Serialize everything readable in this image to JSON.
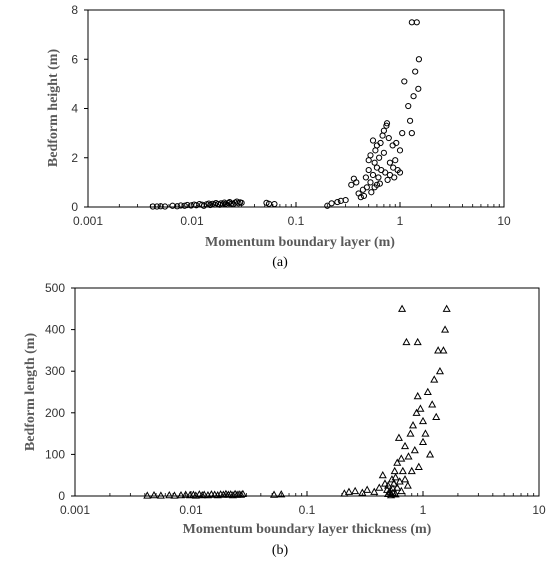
{
  "chart_data": [
    {
      "type": "scatter",
      "panel_label": "(a)",
      "xlabel": "Momentum boundary layer (m)",
      "ylabel": "Bedform height (m)",
      "xscale": "log",
      "xlim": [
        0.001,
        10
      ],
      "ylim": [
        0,
        8
      ],
      "xticks": [
        "0.001",
        "0.01",
        "0.1",
        "1",
        "10"
      ],
      "yticks": [
        "0",
        "2",
        "4",
        "6",
        "8"
      ],
      "marker": "circle",
      "grid": false,
      "legend": "none",
      "points": [
        [
          0.0042,
          0.02
        ],
        [
          0.0046,
          0.02
        ],
        [
          0.005,
          0.03
        ],
        [
          0.0055,
          0.02
        ],
        [
          0.0065,
          0.05
        ],
        [
          0.0072,
          0.03
        ],
        [
          0.0078,
          0.06
        ],
        [
          0.0085,
          0.05
        ],
        [
          0.009,
          0.08
        ],
        [
          0.0098,
          0.06
        ],
        [
          0.0105,
          0.1
        ],
        [
          0.011,
          0.07
        ],
        [
          0.0118,
          0.12
        ],
        [
          0.0125,
          0.09
        ],
        [
          0.013,
          0.05
        ],
        [
          0.0138,
          0.11
        ],
        [
          0.0145,
          0.14
        ],
        [
          0.015,
          0.08
        ],
        [
          0.0158,
          0.13
        ],
        [
          0.0165,
          0.1
        ],
        [
          0.017,
          0.16
        ],
        [
          0.0178,
          0.12
        ],
        [
          0.0185,
          0.09
        ],
        [
          0.019,
          0.15
        ],
        [
          0.0198,
          0.11
        ],
        [
          0.0205,
          0.18
        ],
        [
          0.021,
          0.13
        ],
        [
          0.0218,
          0.1
        ],
        [
          0.0225,
          0.16
        ],
        [
          0.023,
          0.2
        ],
        [
          0.024,
          0.14
        ],
        [
          0.025,
          0.12
        ],
        [
          0.026,
          0.18
        ],
        [
          0.027,
          0.22
        ],
        [
          0.028,
          0.15
        ],
        [
          0.029,
          0.19
        ],
        [
          0.03,
          0.17
        ],
        [
          0.052,
          0.17
        ],
        [
          0.055,
          0.13
        ],
        [
          0.062,
          0.12
        ],
        [
          0.2,
          0.05
        ],
        [
          0.22,
          0.15
        ],
        [
          0.25,
          0.2
        ],
        [
          0.27,
          0.25
        ],
        [
          0.3,
          0.28
        ],
        [
          0.34,
          0.9
        ],
        [
          0.36,
          1.15
        ],
        [
          0.38,
          1.0
        ],
        [
          0.4,
          0.55
        ],
        [
          0.42,
          0.4
        ],
        [
          0.44,
          0.7
        ],
        [
          0.45,
          0.45
        ],
        [
          0.47,
          1.2
        ],
        [
          0.48,
          0.8
        ],
        [
          0.5,
          1.9
        ],
        [
          0.5,
          1.5
        ],
        [
          0.52,
          2.1
        ],
        [
          0.52,
          1.0
        ],
        [
          0.53,
          0.6
        ],
        [
          0.55,
          2.7
        ],
        [
          0.55,
          1.3
        ],
        [
          0.57,
          1.8
        ],
        [
          0.57,
          0.8
        ],
        [
          0.58,
          2.3
        ],
        [
          0.6,
          2.5
        ],
        [
          0.6,
          1.6
        ],
        [
          0.6,
          0.9
        ],
        [
          0.62,
          1.2
        ],
        [
          0.63,
          2.0
        ],
        [
          0.64,
          0.95
        ],
        [
          0.65,
          2.6
        ],
        [
          0.66,
          1.5
        ],
        [
          0.68,
          2.9
        ],
        [
          0.7,
          3.1
        ],
        [
          0.7,
          2.2
        ],
        [
          0.72,
          1.4
        ],
        [
          0.74,
          3.3
        ],
        [
          0.75,
          3.4
        ],
        [
          0.76,
          1.1
        ],
        [
          0.78,
          2.8
        ],
        [
          0.8,
          1.8
        ],
        [
          0.8,
          1.3
        ],
        [
          0.85,
          2.5
        ],
        [
          0.86,
          1.6
        ],
        [
          0.88,
          1.2
        ],
        [
          0.9,
          1.9
        ],
        [
          0.92,
          2.6
        ],
        [
          0.95,
          1.5
        ],
        [
          1.0,
          2.3
        ],
        [
          1.0,
          1.4
        ],
        [
          1.05,
          3.0
        ],
        [
          1.1,
          5.1
        ],
        [
          1.2,
          4.1
        ],
        [
          1.25,
          3.5
        ],
        [
          1.3,
          3.0
        ],
        [
          1.3,
          7.5
        ],
        [
          1.35,
          4.5
        ],
        [
          1.4,
          5.5
        ],
        [
          1.45,
          7.5
        ],
        [
          1.5,
          4.8
        ],
        [
          1.52,
          6.0
        ]
      ]
    },
    {
      "type": "scatter",
      "panel_label": "(b)",
      "xlabel": "Momentum boundary layer thickness (m)",
      "ylabel": "Bedform length (m)",
      "xscale": "log",
      "xlim": [
        0.001,
        10
      ],
      "ylim": [
        0,
        500
      ],
      "xticks": [
        "0.001",
        "0.01",
        "0.1",
        "1",
        "10"
      ],
      "yticks": [
        "0",
        "100",
        "200",
        "300",
        "400",
        "500"
      ],
      "marker": "triangle",
      "grid": false,
      "legend": "none",
      "points": [
        [
          0.0042,
          1
        ],
        [
          0.0048,
          2
        ],
        [
          0.0055,
          1
        ],
        [
          0.0065,
          2
        ],
        [
          0.0072,
          1
        ],
        [
          0.0082,
          2
        ],
        [
          0.009,
          3
        ],
        [
          0.0098,
          2
        ],
        [
          0.0105,
          3
        ],
        [
          0.011,
          1
        ],
        [
          0.0118,
          4
        ],
        [
          0.0125,
          2
        ],
        [
          0.013,
          3
        ],
        [
          0.014,
          2
        ],
        [
          0.015,
          4
        ],
        [
          0.016,
          3
        ],
        [
          0.017,
          2
        ],
        [
          0.018,
          4
        ],
        [
          0.019,
          3
        ],
        [
          0.02,
          5
        ],
        [
          0.021,
          3
        ],
        [
          0.022,
          4
        ],
        [
          0.023,
          2
        ],
        [
          0.024,
          5
        ],
        [
          0.025,
          3
        ],
        [
          0.026,
          4
        ],
        [
          0.027,
          3
        ],
        [
          0.028,
          5
        ],
        [
          0.052,
          3
        ],
        [
          0.06,
          4
        ],
        [
          0.21,
          6
        ],
        [
          0.23,
          10
        ],
        [
          0.26,
          12
        ],
        [
          0.3,
          8
        ],
        [
          0.33,
          15
        ],
        [
          0.38,
          10
        ],
        [
          0.42,
          20
        ],
        [
          0.45,
          50
        ],
        [
          0.47,
          30
        ],
        [
          0.49,
          15
        ],
        [
          0.5,
          5
        ],
        [
          0.5,
          25
        ],
        [
          0.52,
          10
        ],
        [
          0.53,
          2
        ],
        [
          0.54,
          40
        ],
        [
          0.55,
          18
        ],
        [
          0.55,
          8
        ],
        [
          0.56,
          30
        ],
        [
          0.57,
          60
        ],
        [
          0.58,
          4
        ],
        [
          0.58,
          45
        ],
        [
          0.6,
          80
        ],
        [
          0.6,
          20
        ],
        [
          0.62,
          140
        ],
        [
          0.63,
          35
        ],
        [
          0.65,
          12
        ],
        [
          0.65,
          90
        ],
        [
          0.66,
          450
        ],
        [
          0.67,
          60
        ],
        [
          0.7,
          120
        ],
        [
          0.7,
          40
        ],
        [
          0.72,
          370
        ],
        [
          0.74,
          25
        ],
        [
          0.75,
          95
        ],
        [
          0.78,
          150
        ],
        [
          0.8,
          60
        ],
        [
          0.82,
          170
        ],
        [
          0.85,
          110
        ],
        [
          0.88,
          200
        ],
        [
          0.9,
          370
        ],
        [
          0.9,
          240
        ],
        [
          0.92,
          70
        ],
        [
          0.95,
          210
        ],
        [
          1.0,
          180
        ],
        [
          1.0,
          130
        ],
        [
          1.05,
          150
        ],
        [
          1.1,
          250
        ],
        [
          1.15,
          100
        ],
        [
          1.2,
          220
        ],
        [
          1.25,
          280
        ],
        [
          1.3,
          190
        ],
        [
          1.35,
          350
        ],
        [
          1.4,
          300
        ],
        [
          1.5,
          350
        ],
        [
          1.55,
          400
        ],
        [
          1.6,
          450
        ]
      ]
    }
  ]
}
